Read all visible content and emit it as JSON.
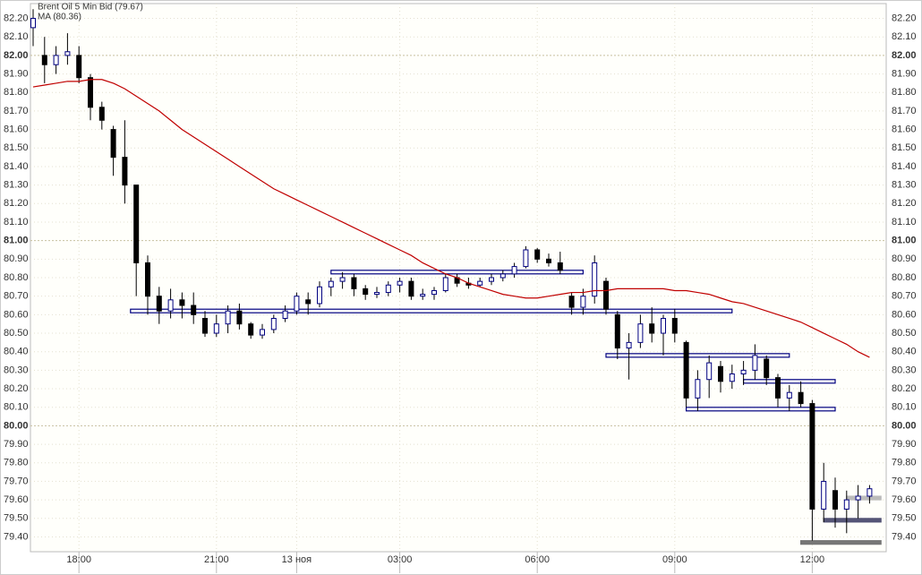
{
  "chart_data": {
    "type": "candlestick",
    "categories": [
      null,
      null,
      null,
      null,
      "18:00",
      null,
      null,
      null,
      null,
      null,
      null,
      null,
      null,
      null,
      null,
      null,
      "21:00",
      null,
      null,
      null,
      null,
      null,
      null,
      "13 ноя",
      null,
      null,
      null,
      null,
      null,
      null,
      null,
      null,
      "03:00",
      null,
      null,
      null,
      null,
      null,
      null,
      null,
      null,
      null,
      null,
      null,
      "06:00",
      null,
      null,
      null,
      null,
      null,
      null,
      null,
      null,
      null,
      null,
      null,
      "09:00",
      null,
      null,
      null,
      null,
      null,
      null,
      null,
      null,
      null,
      null,
      null,
      "12:00",
      null,
      null,
      null,
      null,
      null
    ],
    "series": [
      {
        "name": "Brent Oil 5 Min Bid (79.67)",
        "color": "#000080",
        "open": [
          82.15,
          82.0,
          81.95,
          82.0,
          82.0,
          81.88,
          81.72,
          81.6,
          81.45,
          81.3,
          80.88,
          80.7,
          80.62,
          80.68,
          80.65,
          80.58,
          80.5,
          80.55,
          80.62,
          80.55,
          80.49,
          80.52,
          80.58,
          80.62,
          80.68,
          80.66,
          80.75,
          80.78,
          80.8,
          80.74,
          80.71,
          80.72,
          80.76,
          80.78,
          80.7,
          80.71,
          80.73,
          80.8,
          80.77,
          80.76,
          80.78,
          80.8,
          80.82,
          80.86,
          80.95,
          80.9,
          80.88,
          80.7,
          80.64,
          80.7,
          80.78,
          80.6,
          80.42,
          80.45,
          80.55,
          80.5,
          80.58,
          80.45,
          80.15,
          80.25,
          80.32,
          80.24,
          80.28,
          80.3,
          80.36,
          80.26,
          80.15,
          80.18,
          80.12,
          79.55,
          79.65,
          79.55,
          79.6,
          79.62
        ],
        "high": [
          82.25,
          82.1,
          82.05,
          82.12,
          82.05,
          81.9,
          81.75,
          81.62,
          81.65,
          81.3,
          80.92,
          80.75,
          80.74,
          80.72,
          80.72,
          80.62,
          80.6,
          80.65,
          80.66,
          80.56,
          80.55,
          80.6,
          80.65,
          80.72,
          80.72,
          80.78,
          80.8,
          80.83,
          80.82,
          80.76,
          80.75,
          80.78,
          80.8,
          80.8,
          80.74,
          80.75,
          80.82,
          80.82,
          80.8,
          80.8,
          80.82,
          80.84,
          80.88,
          80.97,
          80.96,
          80.93,
          80.94,
          80.72,
          80.74,
          80.92,
          80.8,
          80.62,
          80.5,
          80.6,
          80.64,
          80.6,
          80.63,
          80.46,
          80.3,
          80.38,
          80.35,
          80.33,
          80.35,
          80.44,
          80.38,
          80.28,
          80.22,
          80.24,
          80.14,
          79.8,
          79.72,
          79.65,
          79.68,
          79.68
        ],
        "low": [
          82.05,
          81.85,
          81.9,
          81.95,
          81.85,
          81.65,
          81.6,
          81.35,
          81.2,
          80.7,
          80.6,
          80.55,
          80.58,
          80.58,
          80.55,
          80.48,
          80.48,
          80.5,
          80.52,
          80.47,
          80.47,
          80.5,
          80.56,
          80.6,
          80.6,
          80.64,
          80.7,
          80.74,
          80.7,
          80.68,
          80.69,
          80.7,
          80.72,
          80.68,
          80.68,
          80.68,
          80.72,
          80.75,
          80.74,
          80.75,
          80.76,
          80.78,
          80.8,
          80.85,
          80.88,
          80.86,
          80.82,
          80.6,
          80.6,
          80.66,
          80.6,
          80.36,
          80.25,
          80.42,
          80.45,
          80.38,
          80.45,
          80.1,
          80.08,
          80.15,
          80.18,
          80.2,
          80.22,
          80.25,
          80.22,
          80.1,
          80.08,
          80.1,
          79.38,
          79.48,
          79.45,
          79.42,
          79.5,
          79.58
        ],
        "close": [
          82.2,
          81.95,
          82.0,
          82.02,
          81.88,
          81.72,
          81.65,
          81.45,
          81.3,
          80.88,
          80.7,
          80.62,
          80.68,
          80.65,
          80.6,
          80.5,
          80.55,
          80.62,
          80.55,
          80.49,
          80.52,
          80.58,
          80.62,
          80.7,
          80.66,
          80.75,
          80.78,
          80.8,
          80.74,
          80.71,
          80.72,
          80.76,
          80.78,
          80.7,
          80.71,
          80.73,
          80.8,
          80.77,
          80.76,
          80.78,
          80.8,
          80.82,
          80.86,
          80.95,
          80.9,
          80.88,
          80.84,
          80.64,
          80.7,
          80.88,
          80.63,
          80.42,
          80.45,
          80.55,
          80.5,
          80.58,
          80.5,
          80.15,
          80.25,
          80.34,
          80.24,
          80.28,
          80.3,
          80.38,
          80.26,
          80.15,
          80.18,
          80.12,
          79.55,
          79.7,
          79.55,
          79.6,
          79.62,
          79.66
        ]
      },
      {
        "name": "MA (80.36)",
        "color": "#c00000",
        "values": [
          81.83,
          81.84,
          81.85,
          81.86,
          81.86,
          81.87,
          81.87,
          81.85,
          81.82,
          81.78,
          81.74,
          81.7,
          81.65,
          81.6,
          81.56,
          81.52,
          81.48,
          81.44,
          81.4,
          81.36,
          81.32,
          81.28,
          81.25,
          81.22,
          81.19,
          81.16,
          81.13,
          81.1,
          81.07,
          81.04,
          81.01,
          80.98,
          80.95,
          80.92,
          80.88,
          80.85,
          80.82,
          80.8,
          80.77,
          80.75,
          80.73,
          80.71,
          80.7,
          80.69,
          80.69,
          80.7,
          80.71,
          80.72,
          80.72,
          80.73,
          80.73,
          80.74,
          80.74,
          80.74,
          80.74,
          80.74,
          80.73,
          80.73,
          80.72,
          80.71,
          80.69,
          80.67,
          80.66,
          80.64,
          80.62,
          80.6,
          80.58,
          80.56,
          80.53,
          80.5,
          80.47,
          80.44,
          80.4,
          80.37
        ]
      }
    ],
    "levels": [
      {
        "value": 80.83,
        "from": 26,
        "to": 48,
        "color": "#000080"
      },
      {
        "value": 80.62,
        "from": 8.5,
        "to": 61,
        "color": "#000080"
      },
      {
        "value": 80.38,
        "from": 50,
        "to": 66,
        "color": "#000080"
      },
      {
        "value": 80.24,
        "from": 62,
        "to": 70,
        "color": "#000080"
      },
      {
        "value": 80.09,
        "from": 57,
        "to": 70,
        "color": "#000080"
      },
      {
        "value": 79.61,
        "from": 71,
        "to": 74,
        "color": "#bbbbbb"
      },
      {
        "value": 79.49,
        "from": 69,
        "to": 74,
        "color": "#555577"
      },
      {
        "value": 79.37,
        "from": 67,
        "to": 74,
        "color": "#777777"
      }
    ],
    "ylim": [
      79.32,
      82.28
    ],
    "yticks": [
      {
        "value": 79.4,
        "label": "79.40"
      },
      {
        "value": 79.5,
        "label": "79.50"
      },
      {
        "value": 79.6,
        "label": "79.60"
      },
      {
        "value": 79.7,
        "label": "79.70"
      },
      {
        "value": 79.8,
        "label": "79.80"
      },
      {
        "value": 79.9,
        "label": "79.90"
      },
      {
        "value": 80.0,
        "label": "80.00"
      },
      {
        "value": 80.1,
        "label": "80.10"
      },
      {
        "value": 80.2,
        "label": "80.20"
      },
      {
        "value": 80.3,
        "label": "80.30"
      },
      {
        "value": 80.4,
        "label": "80.40"
      },
      {
        "value": 80.5,
        "label": "80.50"
      },
      {
        "value": 80.6,
        "label": "80.60"
      },
      {
        "value": 80.7,
        "label": "80.70"
      },
      {
        "value": 80.8,
        "label": "80.80"
      },
      {
        "value": 80.9,
        "label": "80.90"
      },
      {
        "value": 81.0,
        "label": "81.00"
      },
      {
        "value": 81.1,
        "label": "81.10"
      },
      {
        "value": 81.2,
        "label": "81.20"
      },
      {
        "value": 81.3,
        "label": "81.30"
      },
      {
        "value": 81.4,
        "label": "81.40"
      },
      {
        "value": 81.5,
        "label": "81.50"
      },
      {
        "value": 81.6,
        "label": "81.60"
      },
      {
        "value": 81.7,
        "label": "81.70"
      },
      {
        "value": 81.8,
        "label": "81.80"
      },
      {
        "value": 81.9,
        "label": "81.90"
      },
      {
        "value": 82.0,
        "label": "82.00"
      },
      {
        "value": 82.1,
        "label": "82.10"
      },
      {
        "value": 82.2,
        "label": "82.20"
      }
    ],
    "grid": true
  }
}
